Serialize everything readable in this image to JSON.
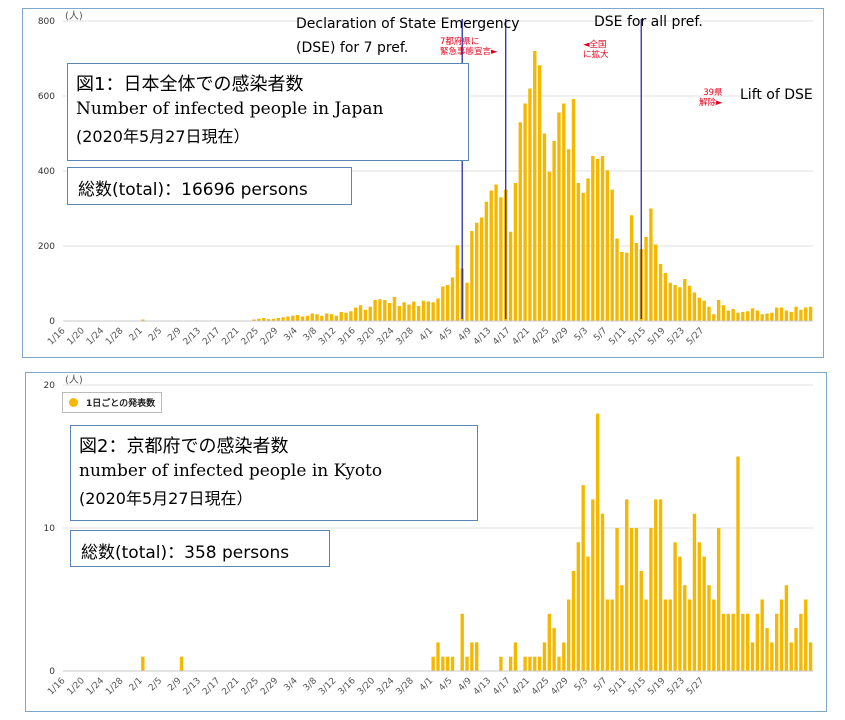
{
  "chart_data": [
    {
      "type": "bar",
      "unit_label": "(人)",
      "ylim": [
        0,
        800
      ],
      "yticks": [
        0,
        200,
        400,
        600,
        800
      ],
      "color": "#f5b800",
      "x_tick_labels": [
        "1/16",
        "1/20",
        "1/24",
        "1/28",
        "2/1",
        "2/5",
        "2/9",
        "2/13",
        "2/17",
        "2/21",
        "2/25",
        "2/29",
        "3/4",
        "3/8",
        "3/12",
        "3/16",
        "3/20",
        "3/24",
        "3/28",
        "4/1",
        "4/5",
        "4/9",
        "4/13",
        "4/17",
        "4/21",
        "4/25",
        "4/29",
        "5/3",
        "5/7",
        "5/11",
        "5/15",
        "5/19",
        "5/23",
        "5/27"
      ],
      "start_date": "1/16",
      "values": [
        0,
        0,
        0,
        0,
        0,
        0,
        0,
        0,
        0,
        0,
        0,
        0,
        0,
        0,
        0,
        0,
        4,
        0,
        0,
        0,
        0,
        0,
        0,
        0,
        0,
        0,
        0,
        0,
        0,
        0,
        0,
        0,
        0,
        0,
        0,
        0,
        0,
        0,
        0,
        4,
        6,
        8,
        5,
        6,
        8,
        10,
        12,
        14,
        16,
        12,
        14,
        20,
        18,
        14,
        20,
        18,
        14,
        24,
        22,
        26,
        36,
        42,
        30,
        38,
        56,
        58,
        56,
        48,
        64,
        40,
        50,
        44,
        52,
        40,
        54,
        52,
        50,
        60,
        92,
        96,
        116,
        202,
        140,
        102,
        240,
        262,
        276,
        318,
        348,
        364,
        330,
        350,
        238,
        368,
        530,
        580,
        620,
        720,
        682,
        500,
        398,
        480,
        556,
        580,
        458,
        592,
        368,
        342,
        380,
        440,
        432,
        440,
        402,
        350,
        220,
        184,
        182,
        282,
        208,
        192,
        224,
        300,
        204,
        152,
        128,
        102,
        96,
        90,
        112,
        94,
        76,
        62,
        54,
        38,
        18,
        56,
        42,
        28,
        32,
        22,
        24,
        26,
        34,
        28,
        18,
        20,
        22,
        36,
        36,
        28,
        24,
        38,
        30,
        36,
        38
      ],
      "title": "図1：日本全体での感染者数",
      "subtitle": "Number of infected people in Japan",
      "as_of": "(2020年5月27日現在）",
      "total": "総数(total)：16696 persons",
      "annotations": [
        {
          "label": "Declaration of State Emergency\n(DSE) for 7 pref.",
          "jp_label": "7都府県に\n緊急事態宣言►"
        },
        {
          "label": "DSE  for all pref.",
          "jp_label": "◄全国\nに拡大"
        },
        {
          "label": "Lift of DSE",
          "jp_label": "39県\n解除►"
        }
      ]
    },
    {
      "type": "bar",
      "unit_label": "(人)",
      "ylim": [
        0,
        20
      ],
      "yticks": [
        0,
        10,
        20
      ],
      "color": "#f5b800",
      "legend": "1日ごとの発表数",
      "x_tick_labels": [
        "1/16",
        "1/20",
        "1/24",
        "1/28",
        "2/1",
        "2/5",
        "2/9",
        "2/13",
        "2/17",
        "2/21",
        "2/25",
        "2/29",
        "3/4",
        "3/8",
        "3/12",
        "3/16",
        "3/20",
        "3/24",
        "3/28",
        "4/1",
        "4/5",
        "4/9",
        "4/13",
        "4/17",
        "4/21",
        "4/25",
        "4/29",
        "5/3",
        "5/7",
        "5/11",
        "5/15",
        "5/19",
        "5/23",
        "5/27"
      ],
      "start_date": "1/16",
      "values": [
        0,
        0,
        0,
        0,
        0,
        0,
        0,
        0,
        0,
        0,
        0,
        0,
        0,
        0,
        0,
        0,
        1,
        0,
        0,
        0,
        0,
        0,
        0,
        0,
        1,
        0,
        0,
        0,
        0,
        0,
        0,
        0,
        0,
        0,
        0,
        0,
        0,
        0,
        0,
        0,
        0,
        0,
        0,
        0,
        0,
        0,
        0,
        0,
        0,
        0,
        0,
        0,
        0,
        0,
        0,
        0,
        0,
        0,
        0,
        0,
        0,
        0,
        0,
        0,
        0,
        0,
        0,
        0,
        0,
        0,
        0,
        0,
        0,
        0,
        0,
        0,
        1,
        2,
        1,
        1,
        1,
        0,
        4,
        1,
        2,
        2,
        0,
        0,
        0,
        0,
        1,
        0,
        1,
        2,
        0,
        1,
        1,
        1,
        1,
        2,
        4,
        3,
        1,
        2,
        5,
        7,
        9,
        13,
        8,
        12,
        18,
        11,
        5,
        5,
        10,
        6,
        12,
        10,
        10,
        7,
        5,
        10,
        12,
        12,
        5,
        5,
        9,
        8,
        6,
        5,
        11,
        9,
        8,
        6,
        5,
        10,
        4,
        4,
        4,
        15,
        4,
        4,
        2,
        4,
        5,
        3,
        2,
        4,
        5,
        6,
        2,
        3,
        4,
        5,
        2
      ],
      "title": "図2：京都府での感染者数",
      "subtitle": "number of infected people in Kyoto",
      "as_of": "(2020年5月27日現在）",
      "total": "総数(total)：358 persons"
    }
  ]
}
